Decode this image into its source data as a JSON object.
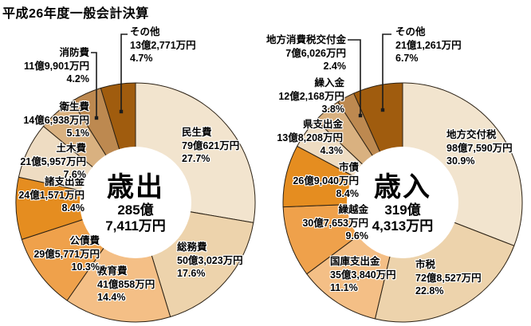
{
  "title": "平成26年度一般会計決算",
  "chart_data": [
    {
      "type": "pie",
      "subtype": "donut",
      "id": "expenditure",
      "title": "歳出",
      "total": "285億7,411万円",
      "total_lines": [
        "285億",
        "7,411万円"
      ],
      "direction": "clockwise",
      "start_angle_deg": 0,
      "labels": [
        "民生費",
        "総務費",
        "教育費",
        "公債費",
        "諸支出金",
        "土木費",
        "衛生費",
        "消防費",
        "その他"
      ],
      "values": [
        27.7,
        17.6,
        14.4,
        10.3,
        8.4,
        7.6,
        5.1,
        4.2,
        4.7
      ],
      "amounts": [
        "79億621万円",
        "50億3,023万円",
        "41億858万円",
        "29億5,771万円",
        "24億1,571万円",
        "21億5,957万円",
        "14億6,938万円",
        "11億9,901万円",
        "13億2,771万円"
      ],
      "pcts": [
        "27.7%",
        "17.6%",
        "14.4%",
        "10.3%",
        "8.4%",
        "7.6%",
        "5.1%",
        "4.2%",
        "4.7%"
      ],
      "colors": [
        "#f2e4ce",
        "#edd3ac",
        "#f4bf86",
        "#efa14b",
        "#e58d20",
        "#eedcc2",
        "#d9b180",
        "#bd8950",
        "#a05c0e"
      ]
    },
    {
      "type": "pie",
      "subtype": "donut",
      "id": "revenue",
      "title": "歳入",
      "total": "319億4,313万円",
      "total_lines": [
        "319億",
        "4,313万円"
      ],
      "direction": "clockwise",
      "start_angle_deg": 0,
      "labels": [
        "地方交付税",
        "市税",
        "国庫支出金",
        "繰越金",
        "市債",
        "県支出金",
        "繰入金",
        "地方消費税交付金",
        "その他"
      ],
      "values": [
        30.9,
        22.8,
        11.1,
        9.6,
        8.4,
        4.3,
        3.8,
        2.4,
        6.7
      ],
      "amounts": [
        "98億7,590万円",
        "72億8,527万円",
        "35億3,840万円",
        "30億7,653万円",
        "26億9,040万円",
        "13億8,208万円",
        "12億2,168万円",
        "7億6,026万円",
        "21億1,261万円"
      ],
      "pcts": [
        "30.9%",
        "22.8%",
        "11.1%",
        "9.6%",
        "8.4%",
        "4.3%",
        "3.8%",
        "2.4%",
        "6.7%"
      ],
      "colors": [
        "#f2e4ce",
        "#edd3ac",
        "#f4bf86",
        "#efa14b",
        "#e58d20",
        "#eedcc2",
        "#d9b180",
        "#bd8950",
        "#a05c0e"
      ]
    }
  ]
}
